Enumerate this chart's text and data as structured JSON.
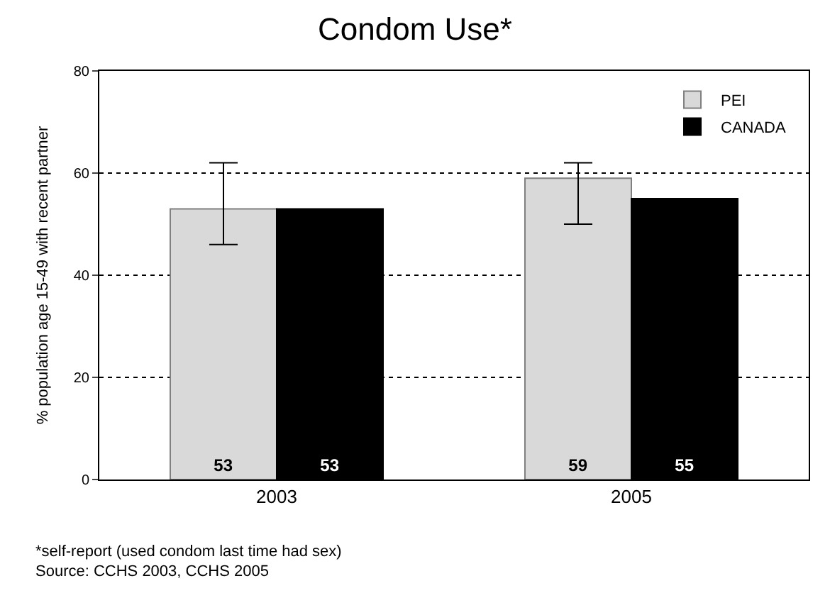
{
  "chart_data": {
    "type": "bar",
    "title": "Condom Use*",
    "ylabel": "% population age 15-49 with recent partner",
    "categories": [
      "2003",
      "2005"
    ],
    "series": [
      {
        "name": "PEI",
        "color": "#d9d9d9",
        "values": [
          53,
          59
        ],
        "errors": [
          [
            46,
            62
          ],
          [
            50,
            62
          ]
        ]
      },
      {
        "name": "CANADA",
        "color": "#000000",
        "values": [
          53,
          55
        ]
      }
    ],
    "ylim": [
      0,
      80
    ],
    "yticks": [
      0,
      20,
      40,
      60,
      80
    ],
    "grid": "y",
    "line_style": "dotted",
    "legend": "top right",
    "data_labels": true,
    "annotations": [
      "*self-report (used condom last time had sex)",
      "Source: CCHS 2003, CCHS 2005"
    ]
  }
}
